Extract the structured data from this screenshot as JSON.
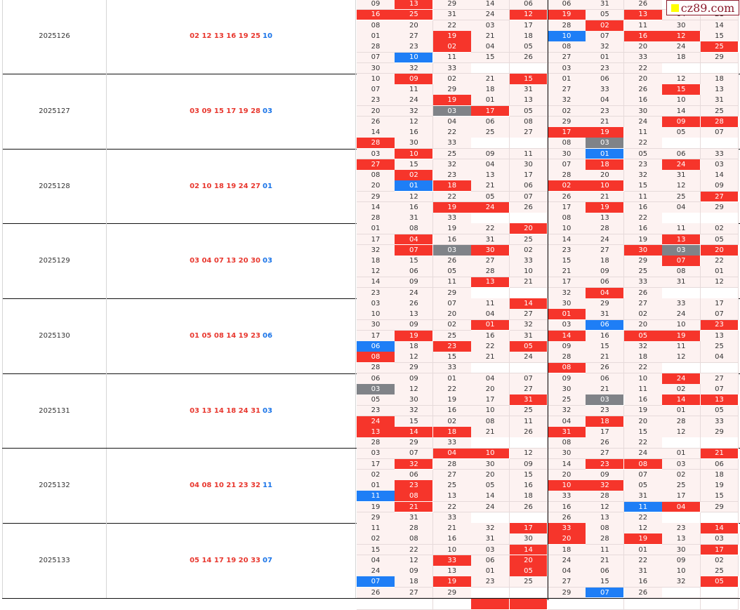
{
  "watermark": {
    "text": "cz89.com"
  },
  "colors": {
    "hit_red": "#f6352b",
    "blue": "#1e7ef6",
    "gray": "#808388",
    "cell_bg": "#fdf2f1",
    "draw_red": "#e8382f",
    "draw_blue": "#1a74e8"
  },
  "groups": [
    {
      "period": "2025126",
      "red": "02 12 13 16 19 25",
      "blue": "10",
      "rows": [
        [
          "09",
          "13|r",
          "29",
          "14",
          "06",
          "06",
          "31",
          "26",
          "",
          ""
        ],
        [
          "16|r",
          "25|r",
          "31",
          "24",
          "12|r",
          "19|r",
          "05",
          "13|r",
          "04",
          "21"
        ],
        [
          "08",
          "20",
          "22",
          "03",
          "17",
          "28",
          "02|r",
          "11",
          "30",
          "14"
        ],
        [
          "01",
          "27",
          "19|r",
          "21",
          "18",
          "10|b",
          "07",
          "16|r",
          "12|r",
          "15"
        ],
        [
          "28",
          "23",
          "02|r",
          "04",
          "05",
          "08",
          "32",
          "20",
          "24",
          "25|r"
        ],
        [
          "07",
          "10|b",
          "11",
          "15",
          "26",
          "27",
          "01",
          "33",
          "18",
          "29"
        ],
        [
          "30",
          "32",
          "33",
          "",
          "",
          "03",
          "23",
          "22",
          "",
          ""
        ]
      ]
    },
    {
      "period": "2025127",
      "red": "03 09 15 17 19 28",
      "blue": "03",
      "rows": [
        [
          "10",
          "09|r",
          "02",
          "21",
          "15|r",
          "01",
          "06",
          "20",
          "12",
          "18"
        ],
        [
          "07",
          "11",
          "29",
          "18",
          "31",
          "27",
          "33",
          "26",
          "15|r",
          "13"
        ],
        [
          "23",
          "24",
          "19|r",
          "01",
          "13",
          "32",
          "04",
          "16",
          "10",
          "31"
        ],
        [
          "20",
          "32",
          "03|g",
          "17|r",
          "05",
          "02",
          "23",
          "30",
          "14",
          "25"
        ],
        [
          "26",
          "12",
          "04",
          "06",
          "08",
          "29",
          "21",
          "24",
          "09|r",
          "28|r"
        ],
        [
          "14",
          "16",
          "22",
          "25",
          "27",
          "17|r",
          "19|r",
          "11",
          "05",
          "07"
        ],
        [
          "28|r",
          "30",
          "33",
          "",
          "",
          "08",
          "03|g",
          "22",
          "",
          ""
        ]
      ]
    },
    {
      "period": "2025128",
      "red": "02 10 18 19 24 27",
      "blue": "01",
      "rows": [
        [
          "03",
          "10|r",
          "25",
          "09",
          "11",
          "30",
          "01|b",
          "05",
          "06",
          "33"
        ],
        [
          "27|r",
          "15",
          "32",
          "04",
          "30",
          "07",
          "18|r",
          "23",
          "24|r",
          "03"
        ],
        [
          "08",
          "02|r",
          "23",
          "13",
          "17",
          "28",
          "20",
          "32",
          "31",
          "14"
        ],
        [
          "20",
          "01|b",
          "18|r",
          "21",
          "06",
          "02|r",
          "10|r",
          "15",
          "12",
          "09"
        ],
        [
          "29",
          "12",
          "22",
          "05",
          "07",
          "26",
          "21",
          "11",
          "25",
          "27|r"
        ],
        [
          "14",
          "16",
          "19|r",
          "24|r",
          "26",
          "17",
          "19|r",
          "16",
          "04",
          "29"
        ],
        [
          "28",
          "31",
          "33",
          "",
          "",
          "08",
          "13",
          "22",
          "",
          ""
        ]
      ]
    },
    {
      "period": "2025129",
      "red": "03 04 07 13 20 30",
      "blue": "03",
      "rows": [
        [
          "01",
          "08",
          "19",
          "22",
          "20|r",
          "10",
          "28",
          "16",
          "11",
          "02"
        ],
        [
          "17",
          "04|r",
          "16",
          "31",
          "25",
          "14",
          "24",
          "19",
          "13|r",
          "05"
        ],
        [
          "32",
          "07|r",
          "03|g",
          "30|r",
          "02",
          "23",
          "27",
          "30|r",
          "03|g",
          "20|r"
        ],
        [
          "18",
          "15",
          "26",
          "27",
          "33",
          "15",
          "18",
          "29",
          "07|r",
          "22"
        ],
        [
          "12",
          "06",
          "05",
          "28",
          "10",
          "21",
          "09",
          "25",
          "08",
          "01"
        ],
        [
          "14",
          "09",
          "11",
          "13|r",
          "21",
          "17",
          "06",
          "33",
          "31",
          "12"
        ],
        [
          "23",
          "24",
          "29",
          "",
          "",
          "32",
          "04|r",
          "26",
          "",
          ""
        ]
      ]
    },
    {
      "period": "2025130",
      "red": "01 05 08 14 19 23",
      "blue": "06",
      "rows": [
        [
          "03",
          "26",
          "07",
          "11",
          "14|r",
          "30",
          "29",
          "27",
          "33",
          "17"
        ],
        [
          "10",
          "13",
          "20",
          "04",
          "27",
          "01|r",
          "31",
          "02",
          "24",
          "07"
        ],
        [
          "30",
          "09",
          "02",
          "01|r",
          "32",
          "03",
          "06|b",
          "20",
          "10",
          "23|r"
        ],
        [
          "17",
          "19|r",
          "25",
          "16",
          "31",
          "14|r",
          "16",
          "05|r",
          "19|r",
          "13"
        ],
        [
          "06|b",
          "18",
          "23|r",
          "22",
          "05|r",
          "09",
          "15",
          "32",
          "11",
          "25"
        ],
        [
          "08|r",
          "12",
          "15",
          "21",
          "24",
          "28",
          "21",
          "18",
          "12",
          "04"
        ],
        [
          "28",
          "29",
          "33",
          "",
          "",
          "08|r",
          "26",
          "22",
          "",
          ""
        ]
      ]
    },
    {
      "period": "2025131",
      "red": "03 13 14 18 24 31",
      "blue": "03",
      "rows": [
        [
          "06",
          "09",
          "01",
          "04",
          "07",
          "09",
          "06",
          "10",
          "24|r",
          "27"
        ],
        [
          "03|g",
          "12",
          "22",
          "20",
          "27",
          "30",
          "21",
          "11",
          "02",
          "07"
        ],
        [
          "05",
          "30",
          "19",
          "17",
          "31|r",
          "25",
          "03|g",
          "16",
          "14|r",
          "13|r"
        ],
        [
          "23",
          "32",
          "16",
          "10",
          "25",
          "32",
          "23",
          "19",
          "01",
          "05"
        ],
        [
          "24|r",
          "15",
          "02",
          "08",
          "11",
          "04",
          "18|r",
          "20",
          "28",
          "33"
        ],
        [
          "13|r",
          "14|r",
          "18|r",
          "21",
          "26",
          "31|r",
          "17",
          "15",
          "12",
          "29"
        ],
        [
          "28",
          "29",
          "33",
          "",
          "",
          "08",
          "26",
          "22",
          "",
          ""
        ]
      ]
    },
    {
      "period": "2025132",
      "red": "04 08 10 21 23 32",
      "blue": "11",
      "rows": [
        [
          "03",
          "07",
          "04|r",
          "10|r",
          "12",
          "30",
          "27",
          "24",
          "01",
          "21|r"
        ],
        [
          "17",
          "32|r",
          "28",
          "30",
          "09",
          "14",
          "23|r",
          "08|r",
          "03",
          "06"
        ],
        [
          "02",
          "06",
          "27",
          "20",
          "15",
          "20",
          "09",
          "07",
          "02",
          "18"
        ],
        [
          "01",
          "23|r",
          "25",
          "05",
          "16",
          "10|r",
          "32|r",
          "05",
          "25",
          "19"
        ],
        [
          "11|b",
          "08|r",
          "13",
          "14",
          "18",
          "33",
          "28",
          "31",
          "17",
          "15"
        ],
        [
          "19",
          "21|r",
          "22",
          "24",
          "26",
          "16",
          "12",
          "11|b",
          "04|r",
          "29"
        ],
        [
          "29",
          "31",
          "33",
          "",
          "",
          "26",
          "13",
          "22",
          "",
          ""
        ]
      ]
    },
    {
      "period": "2025133",
      "red": "05 14 17 19 20 33",
      "blue": "07",
      "rows": [
        [
          "11",
          "28",
          "21",
          "32",
          "17|r",
          "33|r",
          "08",
          "12",
          "23",
          "14|r"
        ],
        [
          "02",
          "08",
          "16",
          "31",
          "30",
          "20|r",
          "28",
          "19|r",
          "13",
          "03"
        ],
        [
          "15",
          "22",
          "10",
          "03",
          "14|r",
          "18",
          "11",
          "01",
          "30",
          "17|r"
        ],
        [
          "04",
          "12",
          "33|r",
          "06",
          "20|r",
          "24",
          "21",
          "22",
          "09",
          "02"
        ],
        [
          "24",
          "09",
          "13",
          "01",
          "05|r",
          "04",
          "06",
          "31",
          "10",
          "25"
        ],
        [
          "07|b",
          "18",
          "19|r",
          "23",
          "25",
          "27",
          "15",
          "16",
          "32",
          "05|r"
        ],
        [
          "26",
          "27",
          "29",
          "",
          "",
          "29",
          "07|b",
          "26",
          "",
          ""
        ]
      ]
    }
  ],
  "partial_row": [
    "",
    "",
    "",
    "|r",
    "|r",
    "",
    "",
    "",
    "",
    ""
  ]
}
